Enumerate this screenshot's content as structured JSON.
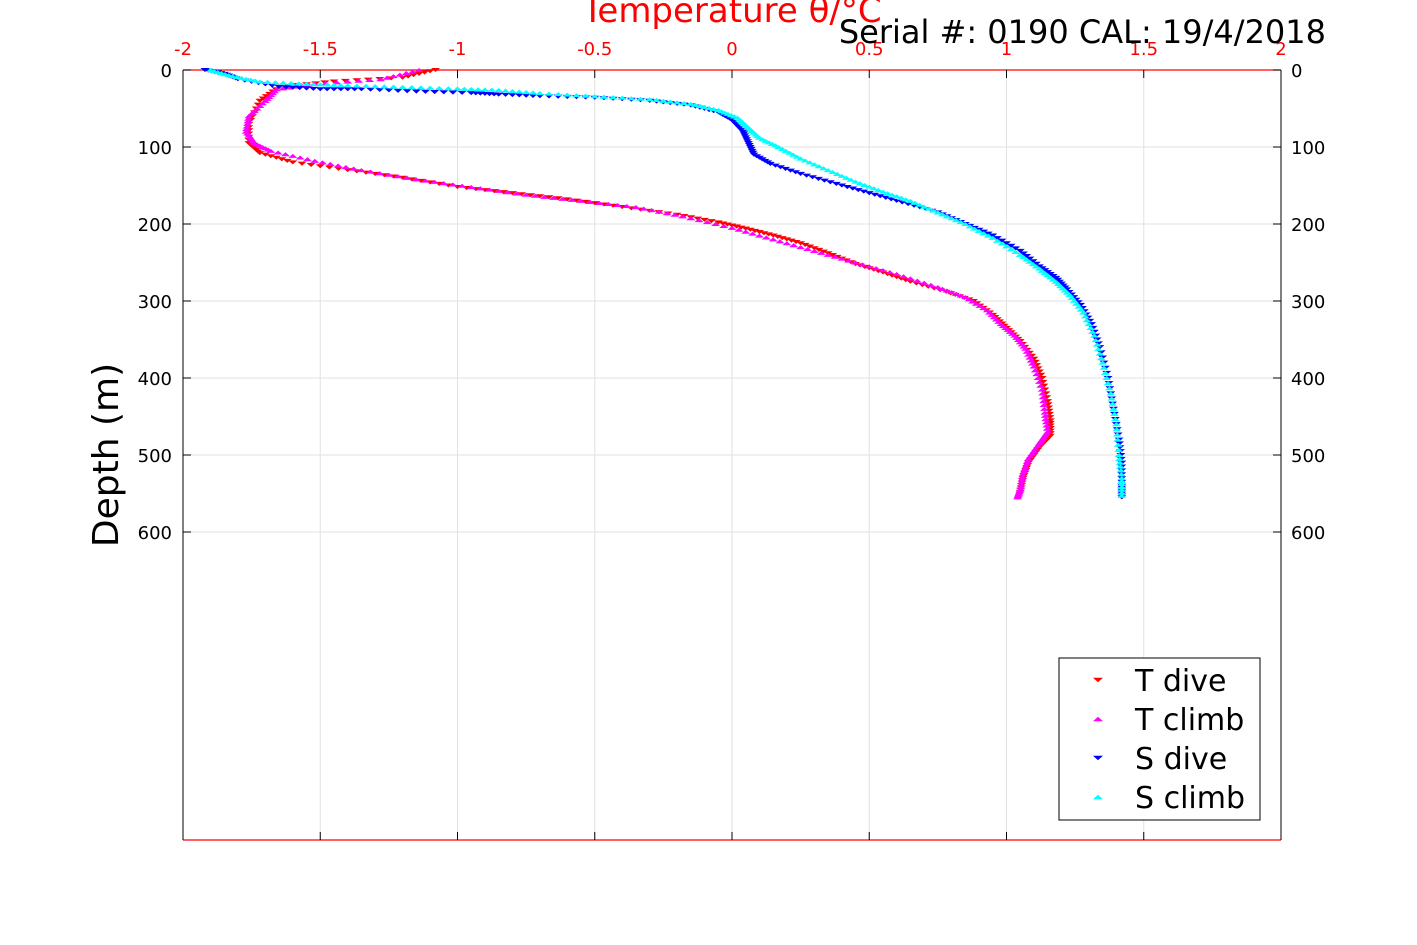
{
  "serial_text": "Serial #: 0190  CAL: 19/4/2018",
  "chart_data": {
    "type": "scatter",
    "title": "Temperature θ/°C",
    "xlabel": "Temperature θ/°C",
    "ylabel": "Depth (m)",
    "xlim": [
      -2,
      2
    ],
    "ylim": [
      0,
      1000
    ],
    "y_reversed": true,
    "x_ticks": [
      "-2",
      "-1.5",
      "-1",
      "-0.5",
      "0",
      "0.5",
      "1",
      "1.5",
      "2"
    ],
    "y_ticks": [
      "0",
      "100",
      "200",
      "300",
      "400",
      "500",
      "600"
    ],
    "grid": true,
    "legend_position": "bottom-right",
    "series": [
      {
        "name": "T dive",
        "marker": "triangle-down",
        "color": "#ff0000",
        "points": [
          [
            -1.08,
            0
          ],
          [
            -1.2,
            10
          ],
          [
            -1.45,
            15
          ],
          [
            -1.65,
            22
          ],
          [
            -1.72,
            40
          ],
          [
            -1.76,
            70
          ],
          [
            -1.76,
            95
          ],
          [
            -1.72,
            108
          ],
          [
            -1.6,
            120
          ],
          [
            -1.4,
            130
          ],
          [
            -1.2,
            140
          ],
          [
            -1.0,
            152
          ],
          [
            -0.8,
            160
          ],
          [
            -0.6,
            168
          ],
          [
            -0.4,
            178
          ],
          [
            -0.2,
            188
          ],
          [
            -0.05,
            198
          ],
          [
            0.05,
            206
          ],
          [
            0.15,
            215
          ],
          [
            0.25,
            225
          ],
          [
            0.35,
            238
          ],
          [
            0.45,
            252
          ],
          [
            0.55,
            263
          ],
          [
            0.65,
            275
          ],
          [
            0.78,
            288
          ],
          [
            0.88,
            300
          ],
          [
            0.95,
            318
          ],
          [
            1.0,
            335
          ],
          [
            1.05,
            352
          ],
          [
            1.1,
            375
          ],
          [
            1.13,
            400
          ],
          [
            1.15,
            430
          ],
          [
            1.16,
            455
          ],
          [
            1.16,
            475
          ],
          [
            1.12,
            490
          ],
          [
            1.08,
            510
          ],
          [
            1.06,
            530
          ],
          [
            1.05,
            548
          ]
        ]
      },
      {
        "name": "T climb",
        "marker": "triangle-up",
        "color": "#ff00ff",
        "points": [
          [
            -1.14,
            0
          ],
          [
            -1.28,
            12
          ],
          [
            -1.52,
            18
          ],
          [
            -1.66,
            25
          ],
          [
            -1.7,
            40
          ],
          [
            -1.76,
            60
          ],
          [
            -1.77,
            80
          ],
          [
            -1.74,
            95
          ],
          [
            -1.68,
            105
          ],
          [
            -1.52,
            118
          ],
          [
            -1.35,
            130
          ],
          [
            -1.15,
            142
          ],
          [
            -0.95,
            152
          ],
          [
            -0.75,
            162
          ],
          [
            -0.55,
            170
          ],
          [
            -0.35,
            178
          ],
          [
            -0.18,
            190
          ],
          [
            0.0,
            205
          ],
          [
            0.15,
            220
          ],
          [
            0.3,
            235
          ],
          [
            0.45,
            250
          ],
          [
            0.6,
            265
          ],
          [
            0.75,
            282
          ],
          [
            0.85,
            295
          ],
          [
            0.93,
            312
          ],
          [
            0.98,
            330
          ],
          [
            1.03,
            345
          ],
          [
            1.07,
            362
          ],
          [
            1.1,
            385
          ],
          [
            1.13,
            415
          ],
          [
            1.14,
            445
          ],
          [
            1.15,
            470
          ],
          [
            1.12,
            485
          ],
          [
            1.08,
            505
          ],
          [
            1.06,
            525
          ],
          [
            1.05,
            545
          ],
          [
            1.04,
            555
          ]
        ]
      },
      {
        "name": "S dive",
        "marker": "triangle-down",
        "color": "#0000ff",
        "points": [
          [
            -1.92,
            0
          ],
          [
            -1.85,
            5
          ],
          [
            -1.8,
            12
          ],
          [
            -1.65,
            22
          ],
          [
            -1.5,
            25
          ],
          [
            -1.35,
            25
          ],
          [
            -1.15,
            28
          ],
          [
            -0.95,
            30
          ],
          [
            -0.85,
            32
          ],
          [
            -0.7,
            34
          ],
          [
            -0.5,
            36
          ],
          [
            -0.3,
            40
          ],
          [
            -0.15,
            46
          ],
          [
            -0.05,
            55
          ],
          [
            0.0,
            65
          ],
          [
            0.04,
            80
          ],
          [
            0.06,
            95
          ],
          [
            0.08,
            110
          ],
          [
            0.14,
            122
          ],
          [
            0.25,
            135
          ],
          [
            0.38,
            148
          ],
          [
            0.5,
            160
          ],
          [
            0.62,
            172
          ],
          [
            0.75,
            185
          ],
          [
            0.85,
            200
          ],
          [
            0.95,
            215
          ],
          [
            1.05,
            235
          ],
          [
            1.12,
            255
          ],
          [
            1.18,
            270
          ],
          [
            1.22,
            285
          ],
          [
            1.27,
            305
          ],
          [
            1.31,
            330
          ],
          [
            1.34,
            360
          ],
          [
            1.37,
            400
          ],
          [
            1.39,
            440
          ],
          [
            1.41,
            480
          ],
          [
            1.42,
            510
          ],
          [
            1.42,
            540
          ],
          [
            1.42,
            555
          ]
        ]
      },
      {
        "name": "S climb",
        "marker": "triangle-up",
        "color": "#00ffff",
        "points": [
          [
            -1.9,
            0
          ],
          [
            -1.82,
            8
          ],
          [
            -1.72,
            15
          ],
          [
            -1.55,
            18
          ],
          [
            -1.4,
            20
          ],
          [
            -1.2,
            22
          ],
          [
            -1.0,
            24
          ],
          [
            -0.85,
            26
          ],
          [
            -0.7,
            30
          ],
          [
            -0.5,
            34
          ],
          [
            -0.3,
            38
          ],
          [
            -0.15,
            44
          ],
          [
            -0.05,
            52
          ],
          [
            0.02,
            62
          ],
          [
            0.06,
            75
          ],
          [
            0.1,
            88
          ],
          [
            0.17,
            100
          ],
          [
            0.25,
            115
          ],
          [
            0.35,
            130
          ],
          [
            0.45,
            145
          ],
          [
            0.55,
            158
          ],
          [
            0.65,
            170
          ],
          [
            0.75,
            185
          ],
          [
            0.85,
            200
          ],
          [
            0.95,
            218
          ],
          [
            1.05,
            240
          ],
          [
            1.12,
            258
          ],
          [
            1.18,
            275
          ],
          [
            1.23,
            292
          ],
          [
            1.28,
            315
          ],
          [
            1.32,
            345
          ],
          [
            1.35,
            380
          ],
          [
            1.38,
            420
          ],
          [
            1.4,
            460
          ],
          [
            1.41,
            500
          ],
          [
            1.42,
            530
          ],
          [
            1.42,
            553
          ]
        ]
      }
    ]
  }
}
